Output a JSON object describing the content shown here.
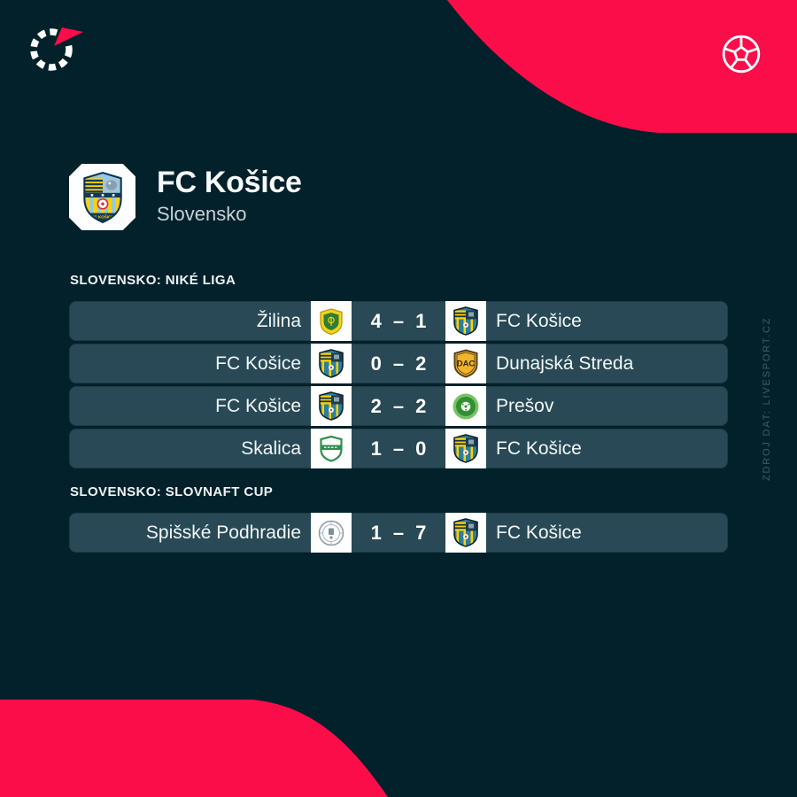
{
  "brand": {
    "logo_icon": "livesport-logo",
    "ball_icon": "football-icon"
  },
  "colors": {
    "accent_pink": "#fb0d4a",
    "background": "#03212b",
    "row_background": "#284955",
    "text_primary": "#f3f7f8",
    "watermark": "#3e5d6b"
  },
  "team_header": {
    "name": "FC Košice",
    "country": "Slovensko",
    "crest_icon": "fc-kosice-crest"
  },
  "score_separator": "–",
  "sections": [
    {
      "label": "SLOVENSKO: NIKÉ LIGA",
      "matches": [
        {
          "home": "Žilina",
          "away": "FC Košice",
          "home_score": "4",
          "away_score": "1",
          "home_logo": "zilina-crest",
          "away_logo": "kosice-crest"
        },
        {
          "home": "FC Košice",
          "away": "Dunajská Streda",
          "home_score": "0",
          "away_score": "2",
          "home_logo": "kosice-crest",
          "away_logo": "dac-crest"
        },
        {
          "home": "FC Košice",
          "away": "Prešov",
          "home_score": "2",
          "away_score": "2",
          "home_logo": "kosice-crest",
          "away_logo": "presov-crest"
        },
        {
          "home": "Skalica",
          "away": "FC Košice",
          "home_score": "1",
          "away_score": "0",
          "home_logo": "skalica-crest",
          "away_logo": "kosice-crest"
        }
      ]
    },
    {
      "label": "SLOVENSKO: SLOVNAFT CUP",
      "matches": [
        {
          "home": "Spišské Podhradie",
          "away": "FC Košice",
          "home_score": "1",
          "away_score": "7",
          "home_logo": "spisske-crest",
          "away_logo": "kosice-crest"
        }
      ]
    }
  ],
  "watermark_text": "ZDROJ DAT: LIVESPORT.CZ"
}
